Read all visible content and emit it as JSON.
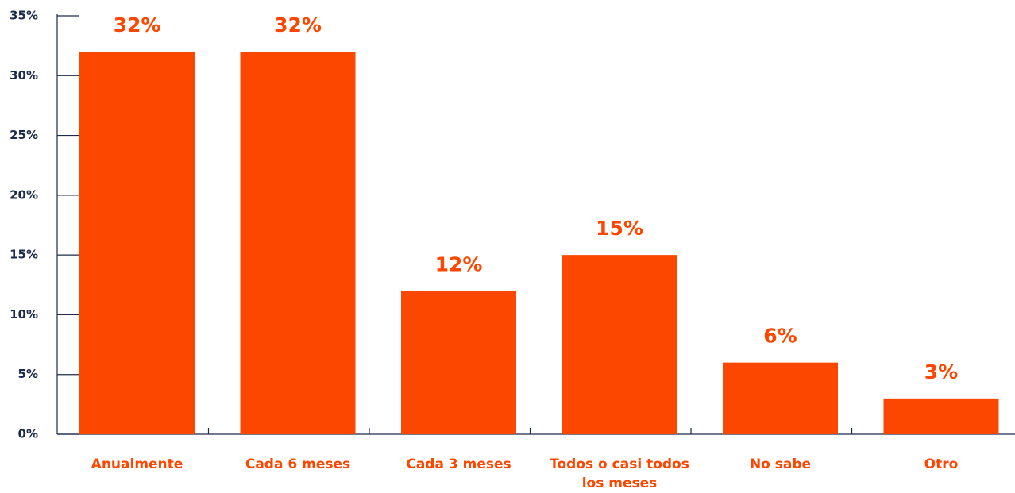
{
  "chart_data": {
    "type": "bar",
    "categories": [
      "Anualmente",
      "Cada 6 meses",
      "Cada 3 meses",
      "Todos o casi todos los meses",
      "No sabe",
      "Otro"
    ],
    "values": [
      32,
      32,
      12,
      15,
      6,
      3
    ],
    "value_labels": [
      "32%",
      "32%",
      "12%",
      "15%",
      "6%",
      "3%"
    ],
    "color": "#fc4700",
    "ylim": [
      0,
      35
    ],
    "yticks": [
      {
        "value": 0,
        "label": "0%"
      },
      {
        "value": 5,
        "label": "5%"
      },
      {
        "value": 10,
        "label": "10%"
      },
      {
        "value": 15,
        "label": "15%"
      },
      {
        "value": 20,
        "label": "20%"
      },
      {
        "value": 25,
        "label": "25%"
      },
      {
        "value": 30,
        "label": "30%"
      },
      {
        "value": 35,
        "label": "35%"
      }
    ]
  }
}
